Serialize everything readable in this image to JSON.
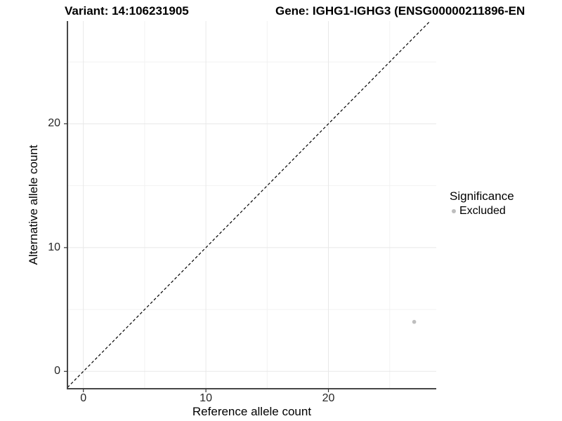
{
  "figure": {
    "title_variant": "Variant: 14:106231905",
    "title_gene": "Gene: IGHG1-IGHG3 (ENSG00000211896-EN",
    "xlabel": "Reference allele count",
    "ylabel": "Alternative allele count",
    "legend_title": "Significance",
    "legend_items": [
      {
        "label": "Excluded",
        "color": "#bebebe"
      }
    ]
  },
  "chart_data": {
    "type": "scatter",
    "title": "Variant: 14:106231905   Gene: IGHG1-IGHG3 (ENSG00000211896-EN",
    "xlabel": "Reference allele count",
    "ylabel": "Alternative allele count",
    "xlim": [
      -1.3,
      28.8
    ],
    "ylim": [
      -1.4,
      28.3
    ],
    "xticks": [
      0,
      10,
      20
    ],
    "yticks": [
      0,
      10,
      20
    ],
    "minor_xticks": [
      5,
      15,
      25
    ],
    "minor_yticks": [
      5,
      15,
      25
    ],
    "grid": true,
    "identity_line": {
      "slope": 1,
      "intercept": 0,
      "style": "dashed",
      "color": "#000000"
    },
    "series": [
      {
        "name": "Excluded",
        "color": "#bebebe",
        "points": [
          [
            27,
            4
          ]
        ]
      }
    ],
    "legend": {
      "title": "Significance",
      "position": "right",
      "entries": [
        "Excluded"
      ]
    },
    "colors": {
      "grid_major": "#e8e8e8",
      "grid_minor": "#f2f2f2",
      "axis_line": "#474747",
      "tick_mark": "#333333",
      "point": "#bebebe"
    }
  }
}
